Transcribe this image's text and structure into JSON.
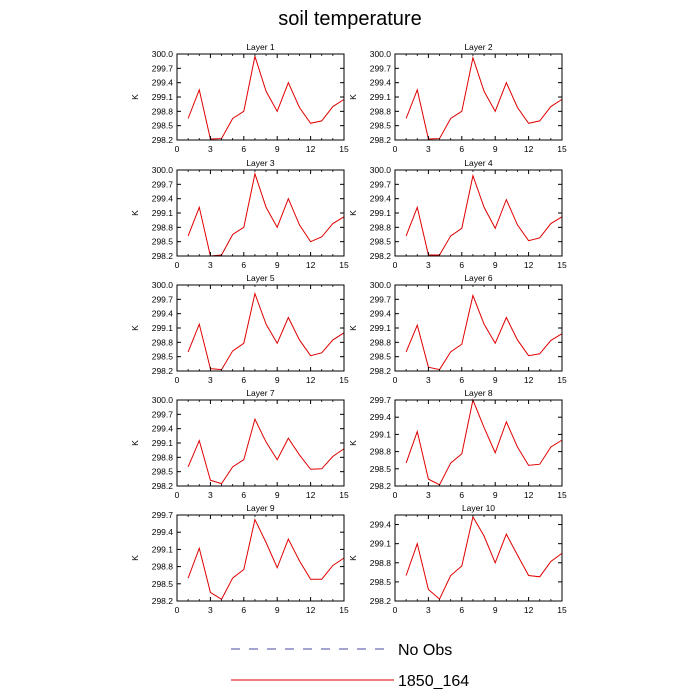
{
  "title": "soil temperature",
  "legend": {
    "items": [
      {
        "label": "No Obs",
        "style": "dashed",
        "color": "#4a4aa0"
      },
      {
        "label": "1850_164",
        "style": "solid",
        "color": "#e00000"
      }
    ]
  },
  "colors": {
    "series": "#e00000",
    "obs": "#4a4aa0"
  },
  "chart_data": [
    {
      "type": "line",
      "title": "Layer 1",
      "ylabel": "K",
      "xlim": [
        0,
        15
      ],
      "xticks": [
        0,
        3,
        6,
        9,
        12,
        15
      ],
      "ylim": [
        298.2,
        300.0
      ],
      "yticks": [
        "298.2",
        "298.5",
        "298.8",
        "299.1",
        "299.4",
        "299.7",
        "300.0"
      ],
      "series": [
        {
          "name": "1850_164",
          "x": [
            1,
            2,
            3,
            4,
            5,
            6,
            7,
            8,
            9,
            10,
            11,
            12,
            13,
            14,
            15
          ],
          "values": [
            298.65,
            299.25,
            298.22,
            298.23,
            298.65,
            298.8,
            299.95,
            299.22,
            298.8,
            299.4,
            298.88,
            298.55,
            298.6,
            298.9,
            299.05
          ]
        }
      ]
    },
    {
      "type": "line",
      "title": "Layer 2",
      "ylabel": "K",
      "xlim": [
        0,
        15
      ],
      "xticks": [
        0,
        3,
        6,
        9,
        12,
        15
      ],
      "ylim": [
        298.2,
        300.0
      ],
      "yticks": [
        "298.2",
        "298.5",
        "298.8",
        "299.1",
        "299.4",
        "299.7",
        "300.0"
      ],
      "series": [
        {
          "name": "1850_164",
          "x": [
            1,
            2,
            3,
            4,
            5,
            6,
            7,
            8,
            9,
            10,
            11,
            12,
            13,
            14,
            15
          ],
          "values": [
            298.65,
            299.25,
            298.22,
            298.23,
            298.65,
            298.8,
            299.92,
            299.22,
            298.8,
            299.4,
            298.88,
            298.55,
            298.6,
            298.9,
            299.05
          ]
        }
      ]
    },
    {
      "type": "line",
      "title": "Layer 3",
      "ylabel": "K",
      "xlim": [
        0,
        15
      ],
      "xticks": [
        0,
        3,
        6,
        9,
        12,
        15
      ],
      "ylim": [
        298.2,
        300.0
      ],
      "yticks": [
        "298.2",
        "298.5",
        "298.8",
        "299.1",
        "299.4",
        "299.7",
        "300.0"
      ],
      "series": [
        {
          "name": "1850_164",
          "x": [
            1,
            2,
            3,
            4,
            5,
            6,
            7,
            8,
            9,
            10,
            11,
            12,
            13,
            14,
            15
          ],
          "values": [
            298.62,
            299.22,
            298.2,
            298.22,
            298.65,
            298.8,
            299.92,
            299.22,
            298.8,
            299.4,
            298.85,
            298.5,
            298.6,
            298.88,
            299.02
          ]
        }
      ]
    },
    {
      "type": "line",
      "title": "Layer 4",
      "ylabel": "K",
      "xlim": [
        0,
        15
      ],
      "xticks": [
        0,
        3,
        6,
        9,
        12,
        15
      ],
      "ylim": [
        298.2,
        300.0
      ],
      "yticks": [
        "298.2",
        "298.5",
        "298.8",
        "299.1",
        "299.4",
        "299.7",
        "300.0"
      ],
      "series": [
        {
          "name": "1850_164",
          "x": [
            1,
            2,
            3,
            4,
            5,
            6,
            7,
            8,
            9,
            10,
            11,
            12,
            13,
            14,
            15
          ],
          "values": [
            298.62,
            299.22,
            298.22,
            298.22,
            298.62,
            298.78,
            299.88,
            299.22,
            298.78,
            299.38,
            298.85,
            298.52,
            298.58,
            298.88,
            299.02
          ]
        }
      ]
    },
    {
      "type": "line",
      "title": "Layer 5",
      "ylabel": "K",
      "xlim": [
        0,
        15
      ],
      "xticks": [
        0,
        3,
        6,
        9,
        12,
        15
      ],
      "ylim": [
        298.2,
        300.0
      ],
      "yticks": [
        "298.2",
        "298.5",
        "298.8",
        "299.1",
        "299.4",
        "299.7",
        "300.0"
      ],
      "series": [
        {
          "name": "1850_164",
          "x": [
            1,
            2,
            3,
            4,
            5,
            6,
            7,
            8,
            9,
            10,
            11,
            12,
            13,
            14,
            15
          ],
          "values": [
            298.6,
            299.18,
            298.25,
            298.23,
            298.62,
            298.78,
            299.82,
            299.18,
            298.78,
            299.32,
            298.85,
            298.52,
            298.58,
            298.85,
            299.0
          ]
        }
      ]
    },
    {
      "type": "line",
      "title": "Layer 6",
      "ylabel": "K",
      "xlim": [
        0,
        15
      ],
      "xticks": [
        0,
        3,
        6,
        9,
        12,
        15
      ],
      "ylim": [
        298.2,
        300.0
      ],
      "yticks": [
        "298.2",
        "298.5",
        "298.8",
        "299.1",
        "299.4",
        "299.7",
        "300.0"
      ],
      "series": [
        {
          "name": "1850_164",
          "x": [
            1,
            2,
            3,
            4,
            5,
            6,
            7,
            8,
            9,
            10,
            11,
            12,
            13,
            14,
            15
          ],
          "values": [
            298.6,
            299.16,
            298.28,
            298.23,
            298.6,
            298.76,
            299.78,
            299.18,
            298.78,
            299.32,
            298.85,
            298.52,
            298.56,
            298.84,
            298.98
          ]
        }
      ]
    },
    {
      "type": "line",
      "title": "Layer 7",
      "ylabel": "K",
      "xlim": [
        0,
        15
      ],
      "xticks": [
        0,
        3,
        6,
        9,
        12,
        15
      ],
      "ylim": [
        298.2,
        300.0
      ],
      "yticks": [
        "298.2",
        "298.5",
        "298.8",
        "299.1",
        "299.4",
        "299.7",
        "300.0"
      ],
      "series": [
        {
          "name": "1850_164",
          "x": [
            1,
            2,
            3,
            4,
            5,
            6,
            7,
            8,
            9,
            10,
            11,
            12,
            13,
            14,
            15
          ],
          "values": [
            298.6,
            299.15,
            298.32,
            298.25,
            298.6,
            298.75,
            299.6,
            299.12,
            298.75,
            299.2,
            298.85,
            298.55,
            298.56,
            298.82,
            298.98
          ]
        }
      ]
    },
    {
      "type": "line",
      "title": "Layer 8",
      "ylabel": "K",
      "xlim": [
        0,
        15
      ],
      "xticks": [
        0,
        3,
        6,
        9,
        12,
        15
      ],
      "ylim": [
        298.2,
        299.7
      ],
      "yticks": [
        "298.2",
        "298.5",
        "298.8",
        "299.1",
        "299.4",
        "299.7"
      ],
      "series": [
        {
          "name": "1850_164",
          "x": [
            1,
            2,
            3,
            4,
            5,
            6,
            7,
            8,
            9,
            10,
            11,
            12,
            13,
            14,
            15
          ],
          "values": [
            298.6,
            299.15,
            298.32,
            298.22,
            298.6,
            298.76,
            299.7,
            299.22,
            298.78,
            299.32,
            298.88,
            298.56,
            298.58,
            298.88,
            299.0
          ]
        }
      ]
    },
    {
      "type": "line",
      "title": "Layer 9",
      "ylabel": "K",
      "xlim": [
        0,
        15
      ],
      "xticks": [
        0,
        3,
        6,
        9,
        12,
        15
      ],
      "ylim": [
        298.2,
        299.7
      ],
      "yticks": [
        "298.2",
        "298.5",
        "298.8",
        "299.1",
        "299.4",
        "299.7"
      ],
      "series": [
        {
          "name": "1850_164",
          "x": [
            1,
            2,
            3,
            4,
            5,
            6,
            7,
            8,
            9,
            10,
            11,
            12,
            13,
            14,
            15
          ],
          "values": [
            298.6,
            299.12,
            298.35,
            298.23,
            298.6,
            298.75,
            299.62,
            299.22,
            298.78,
            299.28,
            298.9,
            298.58,
            298.58,
            298.82,
            298.95
          ]
        }
      ]
    },
    {
      "type": "line",
      "title": "Layer 10",
      "ylabel": "K",
      "xlim": [
        0,
        15
      ],
      "xticks": [
        0,
        3,
        6,
        9,
        12,
        15
      ],
      "ylim": [
        298.2,
        299.55
      ],
      "yticks": [
        "298.2",
        "298.5",
        "298.8",
        "299.1",
        "299.4"
      ],
      "series": [
        {
          "name": "1850_164",
          "x": [
            1,
            2,
            3,
            4,
            5,
            6,
            7,
            8,
            9,
            10,
            11,
            12,
            13,
            14,
            15
          ],
          "values": [
            298.6,
            299.1,
            298.38,
            298.23,
            298.6,
            298.75,
            299.52,
            299.22,
            298.8,
            299.25,
            298.92,
            298.6,
            298.58,
            298.82,
            298.95
          ]
        }
      ]
    }
  ]
}
